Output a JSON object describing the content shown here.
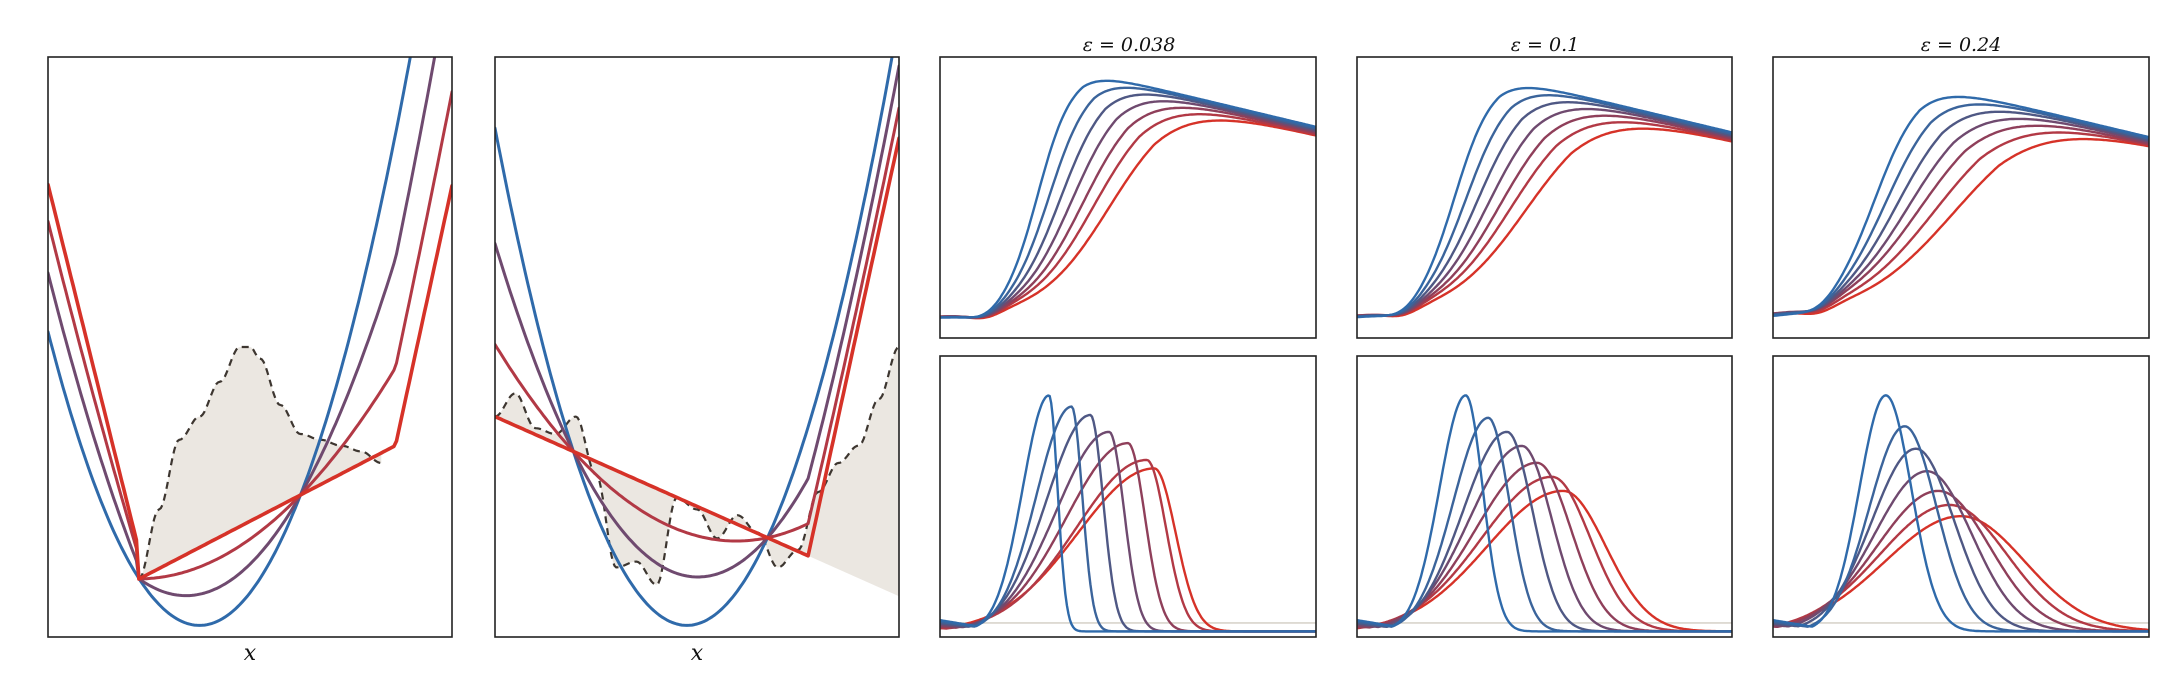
{
  "colors": {
    "background": "#ffffff",
    "frame": "#222222",
    "fill": "#ebe7e1",
    "dashed": "#3d3630",
    "baseline": "#d8d4cc",
    "palette": [
      "#d63228",
      "#b23945",
      "#8f3f5a",
      "#6f4a6f",
      "#4f5884",
      "#3b649b",
      "#2f6aaa"
    ]
  },
  "panel_titles": [
    "",
    "",
    "ε = 0.038",
    "ε = 0.1",
    "ε = 0.24"
  ],
  "chart_data": [
    {
      "type": "line",
      "xlabel": "x",
      "ylabel": "",
      "xlim": [
        -1,
        1
      ],
      "ylim": [
        0,
        1
      ],
      "grid": false,
      "legend": "none",
      "target_density": {
        "style": "dashed-filled",
        "x": [
          -0.55,
          -0.45,
          -0.35,
          -0.25,
          -0.15,
          -0.05,
          0.0,
          0.05,
          0.15,
          0.25,
          0.35,
          0.45,
          0.55,
          0.65
        ],
        "y": [
          0.1,
          0.22,
          0.34,
          0.38,
          0.44,
          0.5,
          0.5,
          0.48,
          0.4,
          0.35,
          0.34,
          0.33,
          0.32,
          0.3
        ]
      },
      "series": [
        {
          "color": "#2f6aaa",
          "kind": "parabola",
          "a": 0.9,
          "x0": -0.25,
          "y0": 0.02
        },
        {
          "color": "#6f4a6f",
          "kind": "interp",
          "t": 0.4
        },
        {
          "color": "#b23945",
          "kind": "interp",
          "t": 0.75
        },
        {
          "color": "#d63228",
          "kind": "line",
          "p0": [
            -0.55,
            0.1
          ],
          "p1": [
            0.72,
            0.33
          ]
        }
      ]
    },
    {
      "type": "line",
      "xlabel": "x",
      "ylabel": "",
      "xlim": [
        -1,
        1
      ],
      "ylim": [
        0,
        1
      ],
      "grid": false,
      "legend": "none",
      "target_density": {
        "style": "dashed-filled",
        "x": [
          -1.0,
          -0.9,
          -0.8,
          -0.7,
          -0.6,
          -0.5,
          -0.4,
          -0.3,
          -0.2,
          -0.1,
          0.0,
          0.1,
          0.2,
          0.3,
          0.4,
          0.5,
          0.6,
          0.7,
          0.8,
          0.9,
          1.0
        ],
        "y": [
          0.38,
          0.42,
          0.36,
          0.35,
          0.38,
          0.28,
          0.12,
          0.13,
          0.09,
          0.24,
          0.22,
          0.17,
          0.21,
          0.18,
          0.12,
          0.15,
          0.25,
          0.3,
          0.33,
          0.41,
          0.5
        ]
      },
      "series": [
        {
          "color": "#2f6aaa",
          "kind": "parabola",
          "a": 0.95,
          "x0": -0.05,
          "y0": 0.02
        },
        {
          "color": "#6f4a6f",
          "kind": "interp",
          "t": 0.4
        },
        {
          "color": "#b23945",
          "kind": "interp",
          "t": 0.75
        },
        {
          "color": "#d63228",
          "kind": "line",
          "p0": [
            -1.0,
            0.38
          ],
          "p1": [
            0.55,
            0.14
          ]
        }
      ]
    },
    {
      "type": "line",
      "title": "ε = 0.038",
      "row": "top",
      "epsilon": 0.038,
      "xlim": [
        0,
        1
      ],
      "ylim": [
        0,
        1
      ],
      "grid": false,
      "legend": "none",
      "series_count": 7,
      "shape": "sigmoid-decay",
      "centers": [
        0.26,
        0.29,
        0.32,
        0.35,
        0.38,
        0.41,
        0.45
      ],
      "width": 0.045,
      "peak": 0.88
    },
    {
      "type": "line",
      "title": "ε = 0.038",
      "row": "bottom",
      "epsilon": 0.038,
      "xlim": [
        0,
        1
      ],
      "ylim": [
        0,
        1
      ],
      "grid": false,
      "legend": "none",
      "series_count": 7,
      "shape": "pulse",
      "peaks_x": [
        0.29,
        0.35,
        0.4,
        0.45,
        0.5,
        0.55,
        0.57
      ],
      "peaks_y": [
        0.86,
        0.82,
        0.79,
        0.73,
        0.69,
        0.63,
        0.6
      ],
      "rise": [
        0.045,
        0.06,
        0.075,
        0.09,
        0.105,
        0.12,
        0.13
      ],
      "fall": 0.02,
      "floor": 0.02,
      "gray_level": 0.05
    },
    {
      "type": "line",
      "title": "ε = 0.1",
      "row": "top",
      "epsilon": 0.1,
      "xlim": [
        0,
        1
      ],
      "ylim": [
        0,
        1
      ],
      "grid": false,
      "legend": "none",
      "series_count": 7,
      "shape": "sigmoid-decay",
      "centers": [
        0.26,
        0.29,
        0.32,
        0.35,
        0.38,
        0.41,
        0.45
      ],
      "width": 0.05,
      "peak": 0.86
    },
    {
      "type": "line",
      "title": "ε = 0.1",
      "row": "bottom",
      "epsilon": 0.1,
      "xlim": [
        0,
        1
      ],
      "ylim": [
        0,
        1
      ],
      "grid": false,
      "legend": "none",
      "series_count": 7,
      "shape": "pulse",
      "peaks_x": [
        0.29,
        0.35,
        0.4,
        0.44,
        0.48,
        0.52,
        0.55
      ],
      "peaks_y": [
        0.86,
        0.78,
        0.73,
        0.68,
        0.62,
        0.57,
        0.52
      ],
      "rise": [
        0.045,
        0.06,
        0.075,
        0.09,
        0.105,
        0.12,
        0.13
      ],
      "fall": 0.04,
      "floor": 0.02,
      "gray_level": 0.05
    },
    {
      "type": "line",
      "title": "ε = 0.24",
      "row": "top",
      "epsilon": 0.24,
      "xlim": [
        0,
        1
      ],
      "ylim": [
        0,
        1
      ],
      "grid": false,
      "legend": "none",
      "series_count": 7,
      "shape": "sigmoid-decay",
      "centers": [
        0.27,
        0.3,
        0.33,
        0.36,
        0.39,
        0.43,
        0.48
      ],
      "width": 0.06,
      "peak": 0.84
    },
    {
      "type": "line",
      "title": "ε = 0.24",
      "row": "bottom",
      "epsilon": 0.24,
      "xlim": [
        0,
        1
      ],
      "ylim": [
        0,
        1
      ],
      "grid": false,
      "legend": "none",
      "series_count": 7,
      "shape": "pulse",
      "peaks_x": [
        0.3,
        0.35,
        0.38,
        0.41,
        0.44,
        0.47,
        0.5
      ],
      "peaks_y": [
        0.86,
        0.75,
        0.67,
        0.59,
        0.52,
        0.47,
        0.43
      ],
      "rise": [
        0.045,
        0.06,
        0.075,
        0.09,
        0.105,
        0.12,
        0.13
      ],
      "fall": 0.06,
      "floor": 0.02,
      "gray_level": 0.05
    }
  ]
}
